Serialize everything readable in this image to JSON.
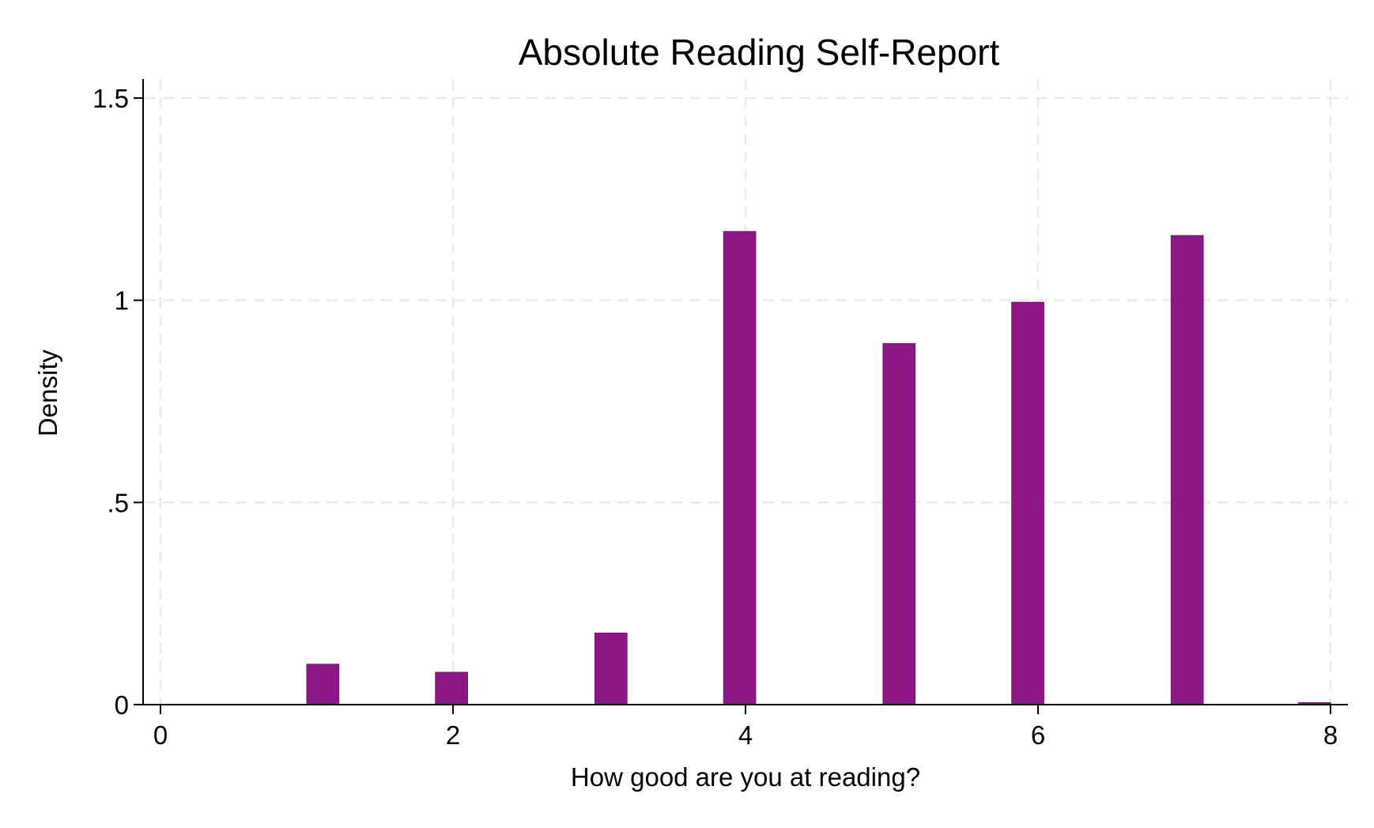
{
  "chart_data": {
    "type": "bar",
    "title": "Absolute Reading Self-Report",
    "xlabel": "How good are you at reading?",
    "ylabel": "Density",
    "xlim": [
      0,
      8
    ],
    "ylim": [
      0,
      1.5
    ],
    "x_ticks": [
      {
        "value": 0,
        "label": "0"
      },
      {
        "value": 2,
        "label": "2"
      },
      {
        "value": 4,
        "label": "4"
      },
      {
        "value": 6,
        "label": "6"
      },
      {
        "value": 8,
        "label": "8"
      }
    ],
    "y_ticks": [
      {
        "value": 0,
        "label": "0"
      },
      {
        "value": 0.5,
        "label": ".5"
      },
      {
        "value": 1,
        "label": "1"
      },
      {
        "value": 1.5,
        "label": "1.5"
      }
    ],
    "grid": true,
    "bar_width": 0.22,
    "bar_color": "#8e1787",
    "bars": [
      {
        "x": 1.11,
        "value": 0.1
      },
      {
        "x": 1.99,
        "value": 0.08
      },
      {
        "x": 3.08,
        "value": 0.177
      },
      {
        "x": 3.96,
        "value": 1.17
      },
      {
        "x": 5.05,
        "value": 0.893
      },
      {
        "x": 5.93,
        "value": 0.995
      },
      {
        "x": 7.02,
        "value": 1.16
      },
      {
        "x": 7.89,
        "value": 0.005
      }
    ]
  }
}
